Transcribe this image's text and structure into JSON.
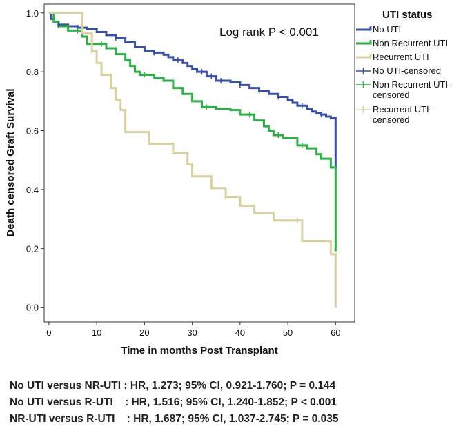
{
  "chart_data": {
    "type": "line",
    "subtype": "kaplan-meier-step",
    "title": "",
    "annotation": "Log rank P < 0.001",
    "xlabel": "Time in months Post Transplant",
    "ylabel": "Death censored Graft Survival",
    "xlim": [
      -1,
      64
    ],
    "ylim": [
      -0.05,
      1.03
    ],
    "xticks": [
      0,
      10,
      20,
      30,
      40,
      50,
      60
    ],
    "yticks": [
      0.0,
      0.2,
      0.4,
      0.6,
      0.8,
      1.0
    ],
    "ytick_labels": [
      "0.0",
      "0.2",
      "0.4",
      "0.6",
      "0.8",
      "1.0"
    ],
    "legend_title": "UTI status",
    "legend": [
      {
        "label": "No UTI",
        "kind": "line",
        "color": "#3a4fa6"
      },
      {
        "label": "Non Recurrent UTI",
        "kind": "line",
        "color": "#2fae45"
      },
      {
        "label": "Recurrent UTI",
        "kind": "line",
        "color": "#d8d0a0"
      },
      {
        "label": "No UTI-censored",
        "kind": "censor",
        "color": "#3a4fa6"
      },
      {
        "label": "Non Recurrent UTI-censored",
        "kind": "censor",
        "color": "#2fae45"
      },
      {
        "label": "Recurrent UTI-censored",
        "kind": "censor",
        "color": "#d8d0a0"
      }
    ],
    "series": [
      {
        "name": "No UTI",
        "color": "#3a4fa6",
        "x": [
          0,
          0.5,
          1,
          2,
          4,
          6,
          8,
          10,
          12,
          14,
          16,
          18,
          20,
          22,
          24,
          25,
          26,
          28,
          29,
          30,
          31,
          33,
          35,
          38,
          40,
          42,
          44,
          46,
          48,
          50,
          51,
          52,
          54,
          55,
          56,
          57,
          58,
          59,
          60,
          60
        ],
        "y": [
          1.0,
          0.98,
          0.97,
          0.96,
          0.955,
          0.95,
          0.945,
          0.935,
          0.925,
          0.915,
          0.9,
          0.885,
          0.872,
          0.865,
          0.858,
          0.85,
          0.84,
          0.83,
          0.82,
          0.81,
          0.8,
          0.785,
          0.77,
          0.765,
          0.755,
          0.745,
          0.735,
          0.725,
          0.715,
          0.705,
          0.695,
          0.685,
          0.675,
          0.665,
          0.66,
          0.655,
          0.648,
          0.643,
          0.64,
          0.47
        ]
      },
      {
        "name": "Non Recurrent UTI",
        "color": "#2fae45",
        "x": [
          0,
          1,
          2,
          4,
          7,
          8,
          10,
          12,
          14,
          16,
          17,
          18,
          19,
          22,
          24,
          26,
          28,
          30,
          32,
          35,
          38,
          40,
          43,
          45,
          46,
          47,
          49,
          52,
          54,
          56,
          57,
          59,
          60,
          60
        ],
        "y": [
          1.0,
          0.97,
          0.955,
          0.94,
          0.92,
          0.895,
          0.895,
          0.88,
          0.86,
          0.84,
          0.82,
          0.8,
          0.79,
          0.78,
          0.77,
          0.745,
          0.725,
          0.7,
          0.68,
          0.675,
          0.67,
          0.655,
          0.635,
          0.615,
          0.6,
          0.585,
          0.575,
          0.55,
          0.54,
          0.52,
          0.505,
          0.475,
          0.47,
          0.19
        ]
      },
      {
        "name": "Recurrent UTI",
        "color": "#d8d0a0",
        "x": [
          0,
          7,
          9,
          10,
          11,
          13,
          14,
          15,
          16,
          21,
          26,
          29,
          30,
          34,
          37,
          40,
          43,
          47,
          53,
          59,
          60,
          60
        ],
        "y": [
          1.0,
          0.93,
          0.87,
          0.83,
          0.79,
          0.745,
          0.705,
          0.67,
          0.595,
          0.555,
          0.525,
          0.485,
          0.445,
          0.405,
          0.375,
          0.345,
          0.32,
          0.295,
          0.225,
          0.18,
          0.18,
          0.0
        ]
      }
    ],
    "censored_marks": [
      {
        "series": "No UTI",
        "x": [
          2,
          6,
          14,
          22,
          27,
          32,
          34,
          36,
          40,
          44,
          48,
          53,
          57
        ]
      },
      {
        "series": "Non Recurrent UTI",
        "x": [
          6,
          11,
          20,
          33,
          42,
          48,
          53
        ]
      },
      {
        "series": "Recurrent UTI",
        "x": [
          9,
          37,
          52
        ]
      }
    ]
  },
  "comparisons": [
    "No UTI versus NR-UTI : HR, 1.273; 95% CI, 0.921-1.760; P = 0.144",
    "No UTI versus R-UTI    : HR, 1.516; 95% CI, 1.240-1.852; P < 0.001",
    "NR-UTI versus R-UTI    : HR, 1.687; 95% CI, 1.037-2.745; P = 0.035"
  ]
}
